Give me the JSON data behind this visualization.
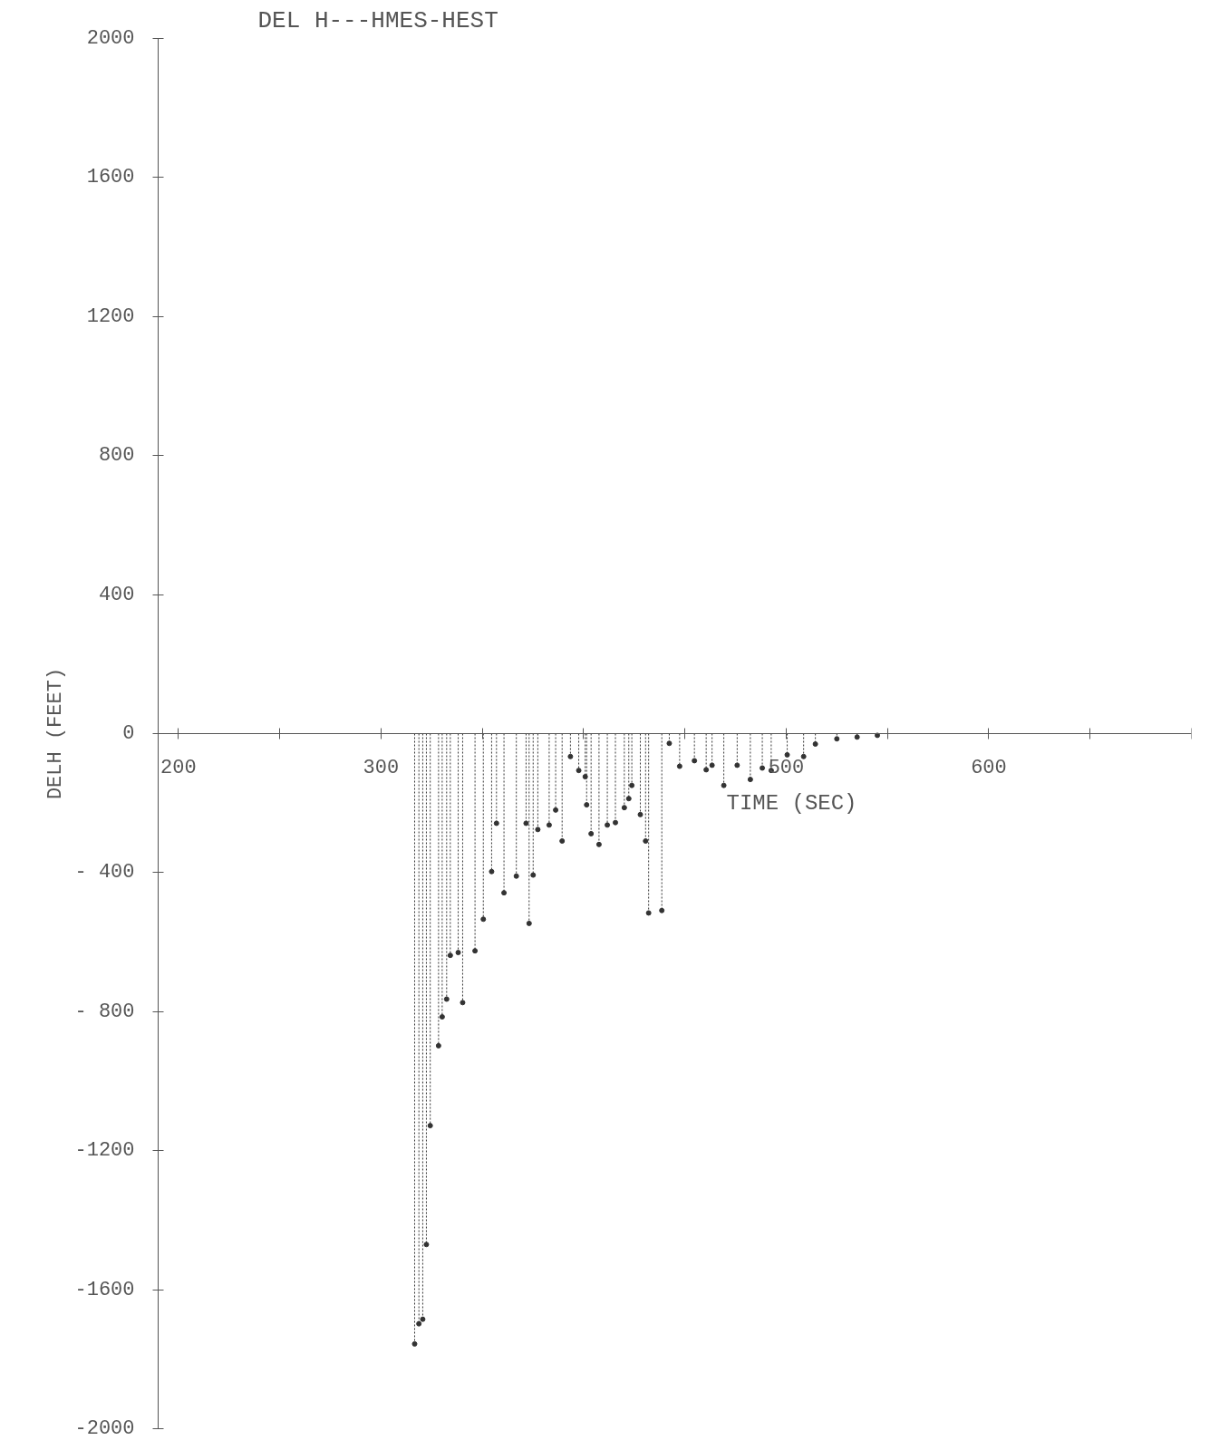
{
  "chart_data": {
    "type": "lollipop",
    "title": "DEL H---HMES-HEST",
    "xlabel": "TIME (SEC)",
    "ylabel": "DELH (FEET)",
    "xlim": [
      190,
      700
    ],
    "ylim": [
      -2000,
      2000
    ],
    "xticks": [
      200,
      {
        "value": 250,
        "label": null
      },
      300,
      {
        "value": 350,
        "label": null
      },
      {
        "value": 400,
        "label": null
      },
      {
        "value": 450,
        "label": null
      },
      500,
      {
        "value": 550,
        "label": null
      },
      600,
      {
        "value": 650,
        "label": null
      },
      {
        "value": 700,
        "label": null
      }
    ],
    "yticks": [
      2000,
      1600,
      1200,
      800,
      400,
      0,
      {
        "value": -400,
        "label": "- 400"
      },
      {
        "value": -800,
        "label": "- 800"
      },
      -1200,
      -1600,
      -2000
    ],
    "grid": false,
    "marker": "circle",
    "color": "#333333",
    "x": [
      316.6,
      318.7,
      320.6,
      322.4,
      324.3,
      328.4,
      330.2,
      332.4,
      334.2,
      338.1,
      340.3,
      346.4,
      350.5,
      354.6,
      357.0,
      360.7,
      366.8,
      371.6,
      373.1,
      375.1,
      377.4,
      383.0,
      386.2,
      389.4,
      393.5,
      397.6,
      400.8,
      401.5,
      403.7,
      407.6,
      411.7,
      415.7,
      420.1,
      422.3,
      423.8,
      428.0,
      430.6,
      432.1,
      438.6,
      442.3,
      447.4,
      454.7,
      460.5,
      463.4,
      469.2,
      475.8,
      482.3,
      488.2,
      492.6,
      500.5,
      508.6,
      514.4,
      525,
      535,
      545
    ],
    "values": [
      -1756,
      -1698,
      -1685,
      -1470,
      -1128,
      -898,
      -815,
      -764,
      -638,
      -630,
      -774,
      -625,
      -534,
      -397,
      -258,
      -458,
      -410,
      -258,
      -546,
      -407,
      -276,
      -263,
      -220,
      -309,
      -66,
      -106,
      -124,
      -205,
      -288,
      -319,
      -263,
      -256,
      -213,
      -187,
      -149,
      -233,
      -309,
      -516,
      -509,
      -28,
      -94,
      -78,
      -104,
      -91,
      -149,
      -91,
      -132,
      -99,
      -106,
      -61,
      -66,
      -30,
      -15,
      -10,
      -5
    ]
  }
}
